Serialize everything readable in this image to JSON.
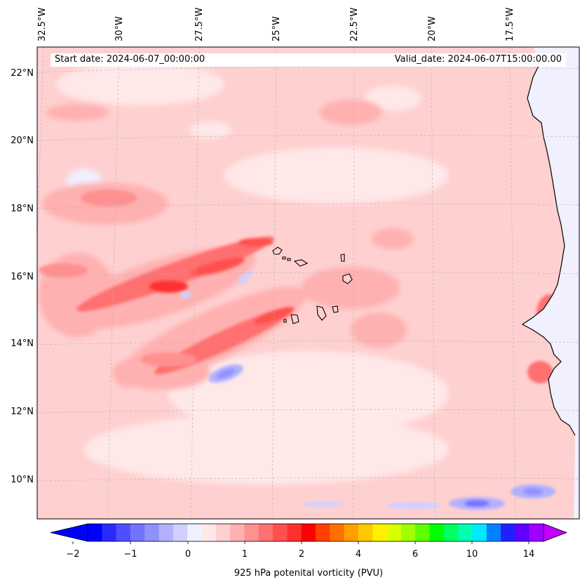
{
  "map": {
    "start_date_label": "Start date: 2024-06-07_00:00:00",
    "valid_date_label": "Valid_date: 2024-06-07T15:00:00.00",
    "longitude_labels": [
      "32.5°W",
      "30°W",
      "27.5°W",
      "25°W",
      "22.5°W",
      "20°W",
      "17.5°W"
    ],
    "latitude_labels": [
      "22°N",
      "20°N",
      "18°N",
      "16°N",
      "14°N",
      "12°N",
      "10°N"
    ],
    "ocean_color": "#ffd0d0",
    "land_color": "#f0f0ff",
    "coastline_color": "#000000"
  },
  "colorbar": {
    "title": "925 hPa potenital vorticity (PVU)",
    "tick_labels": [
      "−2",
      "−1",
      "0",
      "1",
      "2",
      "4",
      "6",
      "10",
      "14"
    ],
    "colors": [
      "#0000ff",
      "#2a2aff",
      "#4f4fff",
      "#7373ff",
      "#9090ff",
      "#b0b0ff",
      "#d0d0ff",
      "#f0f0ff",
      "#ffe8e8",
      "#ffd0d0",
      "#ffb0b0",
      "#ff9090",
      "#ff7070",
      "#ff5050",
      "#ff3030",
      "#ff0000",
      "#ff4000",
      "#ff7000",
      "#ffa000",
      "#ffc800",
      "#fff000",
      "#d8ff00",
      "#a0ff00",
      "#60ff00",
      "#00ff00",
      "#00ff60",
      "#00ffb0",
      "#00e8ff",
      "#0080ff",
      "#2020ff",
      "#6000ff",
      "#a000ff"
    ],
    "extend_min_color": "#0000ff",
    "extend_max_color": "#c000ff"
  }
}
